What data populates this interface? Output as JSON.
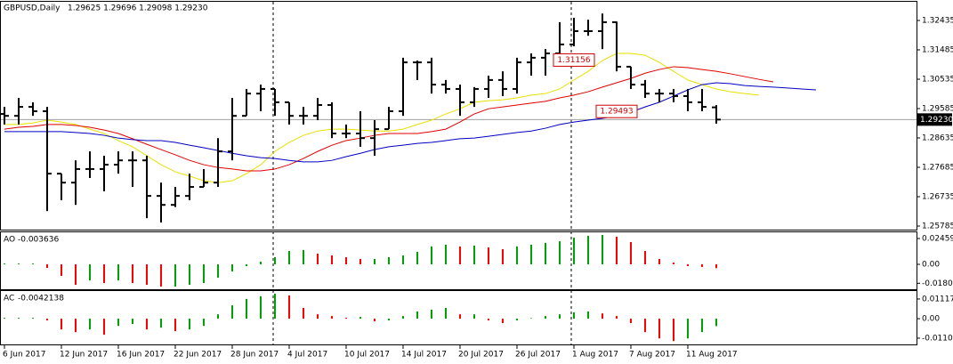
{
  "chart_data": [
    {
      "type": "ohlc",
      "title": "GBPUSD,Daily",
      "header_values": "1.29625 1.29696 1.29098 1.29230",
      "categories": [
        "6 Jun 2017",
        null,
        null,
        null,
        "12 Jun 2017",
        null,
        null,
        null,
        "16 Jun 2017",
        null,
        null,
        null,
        "22 Jun 2017",
        null,
        null,
        null,
        "28 Jun 2017",
        null,
        null,
        null,
        "4 Jul 2017",
        null,
        null,
        null,
        "10 Jul 2017",
        null,
        null,
        null,
        "14 Jul 2017",
        null,
        null,
        null,
        "20 Jul 2017",
        null,
        null,
        null,
        "26 Jul 2017",
        null,
        null,
        null,
        "1 Aug 2017",
        null,
        null,
        null,
        "7 Aug 2017",
        null,
        null,
        null,
        "11 Aug 2017",
        null,
        null,
        null,
        null,
        null,
        null,
        null,
        null,
        null
      ],
      "open": [
        1.2941,
        1.2935,
        1.2964,
        1.295,
        1.2748,
        1.2719,
        1.2763,
        1.2763,
        1.2777,
        1.2791,
        1.2791,
        1.2676,
        1.2647,
        1.2676,
        1.2705,
        1.2719,
        1.282,
        1.2935,
        1.3007,
        1.3022,
        1.2979,
        1.2935,
        1.2935,
        1.297,
        1.2878,
        1.2878,
        1.2863,
        1.2892,
        1.295,
        1.3108,
        1.3108,
        1.3036,
        1.3022,
        1.2979,
        1.3022,
        1.3051,
        1.3022,
        1.3108,
        1.3123,
        1.3137,
        1.3166,
        1.3209,
        1.3209,
        1.3238,
        1.3094,
        1.3036,
        1.3007,
        1.3007,
        1.2999,
        1.2979,
        1.29625,
        null,
        null,
        null,
        null,
        null,
        null,
        null
      ],
      "high": [
        1.2964,
        1.2993,
        1.2979,
        1.2964,
        1.2748,
        1.2791,
        1.282,
        1.2806,
        1.282,
        1.282,
        1.2806,
        1.2719,
        1.2705,
        1.2748,
        1.2763,
        1.2863,
        1.2993,
        1.3022,
        1.3036,
        1.3022,
        1.2979,
        1.2964,
        1.2993,
        1.2979,
        1.2907,
        1.295,
        1.2921,
        1.2964,
        1.3123,
        1.3114,
        1.3123,
        1.3051,
        1.3036,
        1.3028,
        1.3065,
        1.3079,
        1.3123,
        1.3137,
        1.3151,
        1.3238,
        1.3252,
        1.3246,
        1.3266,
        1.324,
        1.3094,
        1.3051,
        1.3022,
        1.3022,
        1.3022,
        1.3022,
        1.29696,
        null,
        null,
        null,
        null,
        null,
        null,
        null
      ],
      "low": [
        1.2907,
        1.2907,
        1.2935,
        1.2627,
        1.2662,
        1.2647,
        1.2734,
        1.2691,
        1.2748,
        1.2705,
        1.2604,
        1.259,
        1.264,
        1.2662,
        1.2705,
        1.2705,
        1.2791,
        1.2935,
        1.295,
        1.2935,
        1.2907,
        1.2907,
        1.2921,
        1.2863,
        1.2863,
        1.2835,
        1.2806,
        1.2892,
        1.2935,
        1.3051,
        1.3007,
        1.3007,
        1.2935,
        1.2964,
        1.2993,
        1.2999,
        1.3007,
        1.3065,
        1.3065,
        1.3108,
        1.316,
        1.3194,
        1.3151,
        1.3079,
        1.3022,
        1.2993,
        1.2979,
        1.2979,
        1.295,
        1.295,
        1.29098,
        null,
        null,
        null,
        null,
        null,
        null,
        null
      ],
      "close": [
        1.2935,
        1.2964,
        1.295,
        1.2748,
        1.2719,
        1.2763,
        1.2763,
        1.2777,
        1.2791,
        1.2791,
        1.2676,
        1.2647,
        1.2676,
        1.2705,
        1.2719,
        1.282,
        1.2935,
        1.3007,
        1.3022,
        1.2979,
        1.2935,
        1.2935,
        1.297,
        1.2878,
        1.2878,
        1.2863,
        1.2892,
        1.295,
        1.3108,
        1.3108,
        1.3036,
        1.3022,
        1.2979,
        1.3022,
        1.3051,
        1.3022,
        1.3108,
        1.3123,
        1.3137,
        1.3166,
        1.3209,
        1.3209,
        1.3238,
        1.3094,
        1.3036,
        1.3007,
        1.3007,
        1.2999,
        1.2979,
        1.2964,
        1.2923,
        null,
        null,
        null,
        null,
        null,
        null,
        null
      ],
      "bar_color": "#000000",
      "lines": [
        {
          "color": "#e8e000",
          "values": [
            1.2907,
            1.2907,
            1.2912,
            1.2921,
            1.2915,
            1.2907,
            1.2892,
            1.2878,
            1.2855,
            1.2835,
            1.2806,
            1.2777,
            1.2754,
            1.274,
            1.2725,
            1.2719,
            1.2725,
            1.2748,
            1.2777,
            1.282,
            1.2849,
            1.2872,
            1.2886,
            1.2892,
            1.2892,
            1.2889,
            1.2886,
            1.2886,
            1.2892,
            1.2907,
            1.2921,
            1.2941,
            1.2958,
            1.2979,
            1.2984,
            1.2987,
            1.2993,
            1.3002,
            1.3007,
            1.3022,
            1.3051,
            1.3079,
            1.3114,
            1.3137,
            1.3137,
            1.3131,
            1.3108,
            1.3079,
            1.3051,
            1.3036,
            1.3022,
            1.3013,
            1.3007,
            1.3002,
            null,
            null,
            null,
            null
          ]
        },
        {
          "color": "#e00000",
          "values": [
            1.2892,
            1.2898,
            1.2901,
            1.2907,
            1.2907,
            1.2904,
            1.2898,
            1.2889,
            1.2878,
            1.2861,
            1.2843,
            1.2826,
            1.2809,
            1.2791,
            1.2777,
            1.2768,
            1.2763,
            1.2757,
            1.2757,
            1.2763,
            1.2777,
            1.2797,
            1.282,
            1.284,
            1.2855,
            1.2863,
            1.2872,
            1.2878,
            1.2878,
            1.2878,
            1.2884,
            1.2892,
            1.2915,
            1.2941,
            1.2958,
            1.2964,
            1.297,
            1.2976,
            1.2982,
            1.2993,
            1.3002,
            1.3013,
            1.3028,
            1.3042,
            1.3056,
            1.3073,
            1.3085,
            1.3094,
            1.3091,
            1.3085,
            1.3079,
            1.3071,
            1.3062,
            1.3053,
            1.3045,
            null,
            null,
            null
          ]
        },
        {
          "color": "#0000c0",
          "values": [
            1.2884,
            1.2884,
            1.2884,
            1.2884,
            1.2884,
            1.2881,
            1.2878,
            1.2872,
            1.2863,
            1.2858,
            1.2855,
            1.2855,
            1.2849,
            1.284,
            1.2832,
            1.2823,
            1.2814,
            1.2806,
            1.28,
            1.2797,
            1.2791,
            1.2786,
            1.2786,
            1.2791,
            1.2803,
            1.2814,
            1.2826,
            1.2835,
            1.284,
            1.2846,
            1.2849,
            1.2855,
            1.2861,
            1.2863,
            1.2869,
            1.2875,
            1.2881,
            1.2886,
            1.2895,
            1.2907,
            1.2915,
            1.2921,
            1.2927,
            1.2935,
            1.2947,
            1.2964,
            1.2979,
            1.2999,
            1.3019,
            1.3036,
            1.3042,
            1.3039,
            1.3033,
            1.303,
            1.3028,
            1.3025,
            1.3022,
            1.3019
          ]
        }
      ],
      "ylim": [
        1.2567,
        1.3304
      ],
      "yticks": [
        1.32435,
        1.31485,
        1.30535,
        1.29585,
        1.28635,
        1.27685,
        1.26735,
        1.25785
      ],
      "current_price": {
        "value": 1.2923,
        "label": "1.29230"
      },
      "annotations": [
        {
          "value": 1.31156,
          "color": "#d00000"
        },
        {
          "value": 1.29493,
          "color": "#d00000"
        }
      ]
    },
    {
      "type": "histogram",
      "title": "AO",
      "current": -0.003636,
      "up_color": "#00a000",
      "down_color": "#ff0000",
      "values": [
        0.0008,
        0.0008,
        0.0008,
        -0.0034,
        -0.011,
        -0.0195,
        -0.0153,
        -0.0178,
        -0.0153,
        -0.0178,
        -0.0195,
        -0.0212,
        -0.0212,
        -0.0195,
        -0.0178,
        -0.0127,
        -0.0068,
        -0.0017,
        0.0025,
        0.0068,
        0.0127,
        0.0136,
        0.0102,
        0.0085,
        0.0068,
        0.0051,
        0.0051,
        0.0068,
        0.0085,
        0.0119,
        0.017,
        0.0187,
        0.017,
        0.0178,
        0.0161,
        0.0144,
        0.017,
        0.0187,
        0.0204,
        0.022,
        0.0254,
        0.0271,
        0.028,
        0.0263,
        0.0212,
        0.0127,
        0.0051,
        0.0017,
        -0.0017,
        -0.0025,
        -0.003636
      ],
      "ylim": [
        -0.0237,
        0.0305
      ],
      "yticks": [
        0.024593,
        {
          "value": 0,
          "label": "0.00"
        },
        -0.018022
      ]
    },
    {
      "type": "histogram",
      "title": "AC",
      "current": -0.0042138,
      "up_color": "#00a000",
      "down_color": "#ff0000",
      "values": [
        0.0005,
        0.0005,
        0.0005,
        -0.001,
        -0.0061,
        -0.0076,
        -0.0061,
        -0.0091,
        -0.0041,
        -0.003,
        -0.0061,
        -0.0051,
        -0.0071,
        -0.0061,
        -0.0041,
        0.0025,
        0.0076,
        0.0112,
        0.0127,
        0.0142,
        0.0132,
        0.0061,
        0.0025,
        0.0015,
        0.0005,
        0.001,
        -0.0015,
        -0.001,
        0.0015,
        0.0041,
        0.0051,
        0.0061,
        0.0025,
        0.0025,
        -0.001,
        -0.0025,
        -0.001,
        0.0003,
        0.0015,
        0.0025,
        0.0036,
        0.0041,
        0.003,
        0.0015,
        -0.0025,
        -0.0076,
        -0.0112,
        -0.0127,
        -0.0112,
        -0.0076,
        -0.0042138
      ],
      "ylim": [
        -0.0146,
        0.0157
      ],
      "yticks": [
        0.011175,
        {
          "value": 0,
          "label": "0.00"
        },
        -0.011032
      ]
    }
  ]
}
